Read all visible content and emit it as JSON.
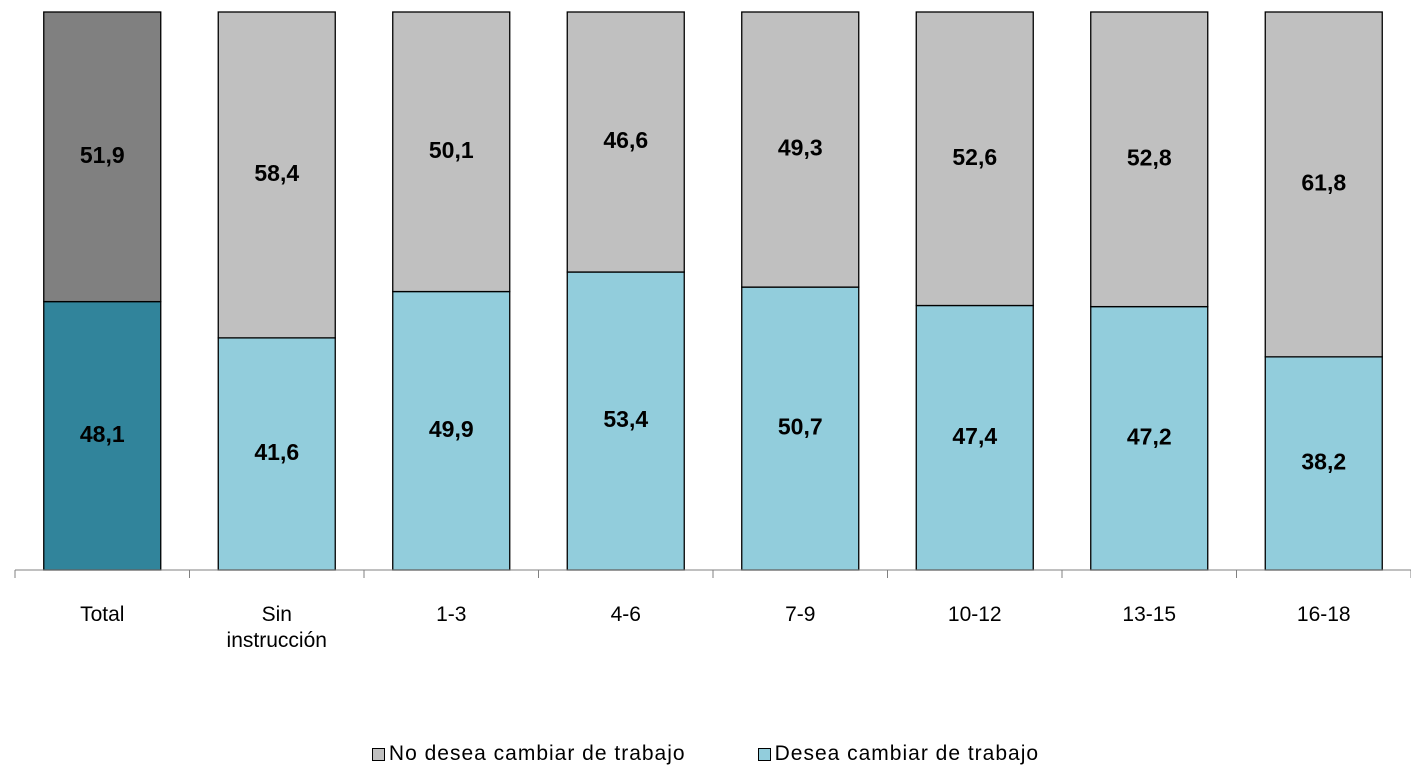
{
  "chart_data": {
    "type": "stacked_bar",
    "categories": [
      "Total",
      "Sin instrucción",
      "1-3",
      "4-6",
      "7-9",
      "10-12",
      "13-15",
      "16-18"
    ],
    "series": [
      {
        "name": "No desea cambiar de trabajo",
        "color": "#c0c0c0",
        "colors": [
          "#808080",
          "#c0c0c0",
          "#c0c0c0",
          "#c0c0c0",
          "#c0c0c0",
          "#c0c0c0",
          "#c0c0c0",
          "#c0c0c0"
        ],
        "values": [
          51.9,
          58.4,
          50.1,
          46.6,
          49.3,
          52.6,
          52.8,
          61.8
        ],
        "value_labels": [
          "51,9",
          "58,4",
          "50,1",
          "46,6",
          "49,3",
          "52,6",
          "52,8",
          "61,8"
        ]
      },
      {
        "name": "Desea cambiar de trabajo",
        "color": "#92cddc",
        "colors": [
          "#31849b",
          "#92cddc",
          "#92cddc",
          "#92cddc",
          "#92cddc",
          "#92cddc",
          "#92cddc",
          "#92cddc"
        ],
        "values": [
          48.1,
          41.6,
          49.9,
          53.4,
          50.7,
          47.4,
          47.2,
          38.2
        ],
        "value_labels": [
          "48,1",
          "41,6",
          "49,9",
          "53,4",
          "50,7",
          "47,4",
          "47,2",
          "38,2"
        ]
      }
    ],
    "ylim": [
      0,
      100
    ]
  }
}
